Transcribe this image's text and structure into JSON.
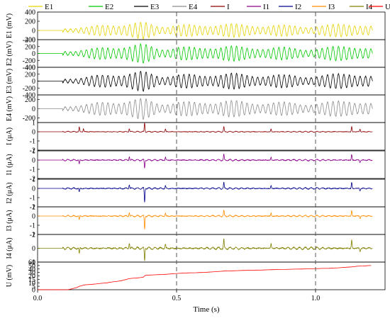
{
  "chart_data": {
    "type": "line",
    "title": "",
    "xlabel": "Time (s)",
    "xlim": [
      0.0,
      1.25
    ],
    "x_ticks": [
      "0.0",
      "0.5",
      "1.0"
    ],
    "legend_position": "top",
    "legend": [
      "E1",
      "E2",
      "E3",
      "E4",
      "I",
      "I1",
      "I2",
      "I3",
      "I4",
      "U"
    ],
    "reference_lines_x": [
      0.5,
      1.0
    ],
    "grid": false,
    "panels": [
      {
        "id": "E1",
        "ylabel": "E1 (mV)",
        "color": "#e6d300",
        "ylim": [
          -200,
          400
        ],
        "yticks": [
          "-200",
          "0",
          "200",
          "400"
        ],
        "series": {
          "kind": "oscillation",
          "onset": 0.09,
          "end": 1.2,
          "baseline": 0,
          "amplitude": 180,
          "envelope": [
            [
              0.09,
              0.25
            ],
            [
              0.2,
              0.55
            ],
            [
              0.33,
              1.0
            ],
            [
              0.38,
              1.05
            ],
            [
              0.44,
              0.55
            ],
            [
              0.5,
              0.85
            ],
            [
              0.58,
              0.6
            ],
            [
              0.67,
              1.0
            ],
            [
              0.75,
              0.65
            ],
            [
              0.85,
              0.75
            ],
            [
              0.95,
              0.55
            ],
            [
              1.05,
              0.7
            ],
            [
              1.13,
              1.0
            ],
            [
              1.2,
              0.6
            ]
          ]
        }
      },
      {
        "id": "E2",
        "ylabel": "E2 (mV)",
        "color": "#00c800",
        "ylim": [
          -400,
          400
        ],
        "yticks": [
          "-400",
          "-200",
          "0",
          "200",
          "400"
        ],
        "series": {
          "kind": "oscillation",
          "onset": 0.09,
          "end": 1.2,
          "baseline": 0,
          "amplitude": 270,
          "envelope": [
            [
              0.09,
              0.25
            ],
            [
              0.2,
              0.55
            ],
            [
              0.33,
              1.0
            ],
            [
              0.38,
              1.05
            ],
            [
              0.44,
              0.55
            ],
            [
              0.5,
              0.85
            ],
            [
              0.58,
              0.6
            ],
            [
              0.67,
              1.0
            ],
            [
              0.75,
              0.65
            ],
            [
              0.85,
              0.75
            ],
            [
              0.95,
              0.55
            ],
            [
              1.05,
              0.7
            ],
            [
              1.13,
              1.0
            ],
            [
              1.2,
              0.6
            ]
          ]
        }
      },
      {
        "id": "E3",
        "ylabel": "E3 (mV)",
        "color": "#000000",
        "ylim": [
          -400,
          400
        ],
        "yticks": [
          "-400",
          "-200",
          "0",
          "200",
          "400"
        ],
        "series": {
          "kind": "oscillation",
          "onset": 0.09,
          "end": 1.2,
          "baseline": 0,
          "amplitude": 280,
          "envelope": [
            [
              0.09,
              0.25
            ],
            [
              0.2,
              0.55
            ],
            [
              0.33,
              1.0
            ],
            [
              0.38,
              1.05
            ],
            [
              0.44,
              0.55
            ],
            [
              0.5,
              0.85
            ],
            [
              0.58,
              0.6
            ],
            [
              0.67,
              1.0
            ],
            [
              0.75,
              0.65
            ],
            [
              0.85,
              0.75
            ],
            [
              0.95,
              0.55
            ],
            [
              1.05,
              0.7
            ],
            [
              1.13,
              1.0
            ],
            [
              1.2,
              0.6
            ]
          ]
        }
      },
      {
        "id": "E4",
        "ylabel": "E4 (mV)",
        "color": "#8c8c8c",
        "ylim": [
          -300,
          300
        ],
        "yticks": [
          "-200",
          "0",
          "200"
        ],
        "series": {
          "kind": "oscillation",
          "onset": 0.09,
          "end": 1.2,
          "baseline": 0,
          "amplitude": 220,
          "envelope": [
            [
              0.09,
              0.25
            ],
            [
              0.2,
              0.55
            ],
            [
              0.33,
              1.0
            ],
            [
              0.38,
              1.05
            ],
            [
              0.44,
              0.55
            ],
            [
              0.5,
              0.85
            ],
            [
              0.58,
              0.6
            ],
            [
              0.67,
              1.0
            ],
            [
              0.75,
              0.65
            ],
            [
              0.85,
              0.75
            ],
            [
              0.95,
              0.55
            ],
            [
              1.05,
              0.7
            ],
            [
              1.13,
              1.0
            ],
            [
              1.2,
              0.6
            ]
          ]
        }
      },
      {
        "id": "I",
        "ylabel": "I (μA)",
        "color": "#8b0000",
        "ylim": [
          -2,
          1
        ],
        "yticks": [
          "-2",
          "-1",
          "0",
          "1"
        ],
        "series": {
          "kind": "spikes",
          "onset": 0.09,
          "end": 1.2,
          "baseline": 0,
          "noise": 0.05,
          "spikes": [
            [
              0.15,
              0.5
            ],
            [
              0.165,
              0.35
            ],
            [
              0.33,
              0.35
            ],
            [
              0.385,
              1.0
            ],
            [
              0.46,
              0.3
            ],
            [
              0.67,
              0.55
            ],
            [
              0.84,
              0.3
            ],
            [
              1.13,
              0.55
            ],
            [
              1.16,
              0.3
            ]
          ]
        }
      },
      {
        "id": "I1",
        "ylabel": "I1 (μA)",
        "color": "#8b008b",
        "ylim": [
          -2,
          1
        ],
        "yticks": [
          "-2",
          "-1",
          "0",
          "1"
        ],
        "series": {
          "kind": "spikes",
          "onset": 0.09,
          "end": 1.2,
          "baseline": 0,
          "noise": 0.08,
          "spikes": [
            [
              0.15,
              -0.45
            ],
            [
              0.33,
              0.4
            ],
            [
              0.385,
              -0.9
            ],
            [
              0.46,
              0.3
            ],
            [
              0.67,
              0.6
            ],
            [
              0.84,
              0.3
            ],
            [
              1.13,
              0.6
            ],
            [
              1.16,
              -0.25
            ]
          ]
        }
      },
      {
        "id": "I2",
        "ylabel": "I2 (μA)",
        "color": "#00008b",
        "ylim": [
          -2,
          1
        ],
        "yticks": [
          "-2",
          "-1",
          "0",
          "1"
        ],
        "series": {
          "kind": "spikes",
          "onset": 0.09,
          "end": 1.2,
          "baseline": 0,
          "noise": 0.08,
          "spikes": [
            [
              0.15,
              -0.4
            ],
            [
              0.33,
              0.45
            ],
            [
              0.385,
              -1.55
            ],
            [
              0.46,
              0.3
            ],
            [
              0.67,
              0.6
            ],
            [
              0.84,
              0.3
            ],
            [
              1.13,
              0.65
            ],
            [
              1.16,
              -0.25
            ]
          ]
        }
      },
      {
        "id": "I3",
        "ylabel": "I3 (μA)",
        "color": "#ff8c00",
        "ylim": [
          -2,
          1
        ],
        "yticks": [
          "-2",
          "-1",
          "0",
          "1"
        ],
        "series": {
          "kind": "spikes",
          "onset": 0.09,
          "end": 1.2,
          "baseline": 0,
          "noise": 0.08,
          "spikes": [
            [
              0.15,
              -0.45
            ],
            [
              0.33,
              0.4
            ],
            [
              0.385,
              -1.45
            ],
            [
              0.46,
              0.3
            ],
            [
              0.67,
              0.6
            ],
            [
              0.84,
              0.3
            ],
            [
              1.13,
              0.6
            ],
            [
              1.16,
              -0.25
            ]
          ]
        }
      },
      {
        "id": "I4",
        "ylabel": "I4 (μA)",
        "color": "#808000",
        "ylim": [
          -1,
          1
        ],
        "yticks": [
          "-1",
          "0",
          "1"
        ],
        "series": {
          "kind": "spikes",
          "onset": 0.09,
          "end": 1.2,
          "baseline": 0,
          "noise": 0.08,
          "spikes": [
            [
              0.15,
              -0.4
            ],
            [
              0.33,
              0.4
            ],
            [
              0.385,
              -0.9
            ],
            [
              0.46,
              0.3
            ],
            [
              0.67,
              0.6
            ],
            [
              0.84,
              0.3
            ],
            [
              1.13,
              0.6
            ],
            [
              1.16,
              -0.25
            ]
          ]
        }
      },
      {
        "id": "U",
        "ylabel": "U (mV)",
        "color": "#ff0000",
        "ylim": [
          0,
          60
        ],
        "yticks": [
          "0",
          "5",
          "10",
          "15",
          "20",
          "30",
          "40",
          "50",
          "60"
        ],
        "series": {
          "kind": "cumulative",
          "points": [
            [
              0.0,
              0
            ],
            [
              0.11,
              0
            ],
            [
              0.12,
              1
            ],
            [
              0.14,
              3
            ],
            [
              0.15,
              5
            ],
            [
              0.17,
              7
            ],
            [
              0.2,
              8
            ],
            [
              0.25,
              10
            ],
            [
              0.3,
              13
            ],
            [
              0.33,
              16
            ],
            [
              0.38,
              18
            ],
            [
              0.39,
              22
            ],
            [
              0.45,
              24
            ],
            [
              0.5,
              27
            ],
            [
              0.55,
              29
            ],
            [
              0.6,
              30
            ],
            [
              0.67,
              34
            ],
            [
              0.75,
              36
            ],
            [
              0.85,
              38
            ],
            [
              0.95,
              40
            ],
            [
              1.05,
              42
            ],
            [
              1.13,
              46
            ],
            [
              1.15,
              48
            ],
            [
              1.2,
              50
            ]
          ]
        }
      }
    ]
  }
}
